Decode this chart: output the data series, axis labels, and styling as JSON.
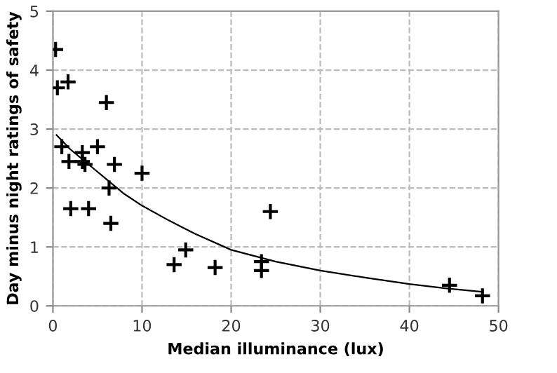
{
  "chart_data": {
    "type": "scatter",
    "xlabel": "Median illuminance (lux)",
    "ylabel": "Day minus night ratings of safety",
    "xlim": [
      0,
      50
    ],
    "ylim": [
      0,
      5
    ],
    "xticks": [
      0,
      10,
      20,
      30,
      40,
      50
    ],
    "yticks": [
      0,
      1,
      2,
      3,
      4,
      5
    ],
    "grid": true,
    "series": [
      {
        "marker": "cross",
        "color": "#000000",
        "x": [
          0.3,
          0.5,
          1.7,
          1.0,
          1.8,
          2.0,
          3.3,
          3.3,
          3.6,
          4.0,
          5.0,
          6.0,
          6.3,
          6.5,
          6.9,
          10.0,
          13.6,
          14.9,
          18.2,
          23.4,
          23.4,
          24.4,
          44.5,
          48.2
        ],
        "values": [
          4.35,
          3.7,
          3.8,
          2.7,
          2.45,
          1.65,
          2.6,
          2.45,
          2.4,
          1.65,
          2.7,
          3.45,
          2.0,
          1.4,
          2.4,
          2.25,
          0.7,
          0.95,
          0.65,
          0.75,
          0.6,
          1.6,
          0.35,
          0.17
        ]
      },
      {
        "type": "line",
        "marker": "none",
        "color": "#000000",
        "x": [
          0.4,
          2,
          4,
          6,
          8,
          10,
          13,
          16,
          20,
          25,
          30,
          35,
          40,
          44,
          48
        ],
        "values": [
          2.9,
          2.65,
          2.4,
          2.15,
          1.9,
          1.7,
          1.45,
          1.22,
          0.95,
          0.75,
          0.6,
          0.48,
          0.37,
          0.3,
          0.24
        ]
      }
    ]
  }
}
